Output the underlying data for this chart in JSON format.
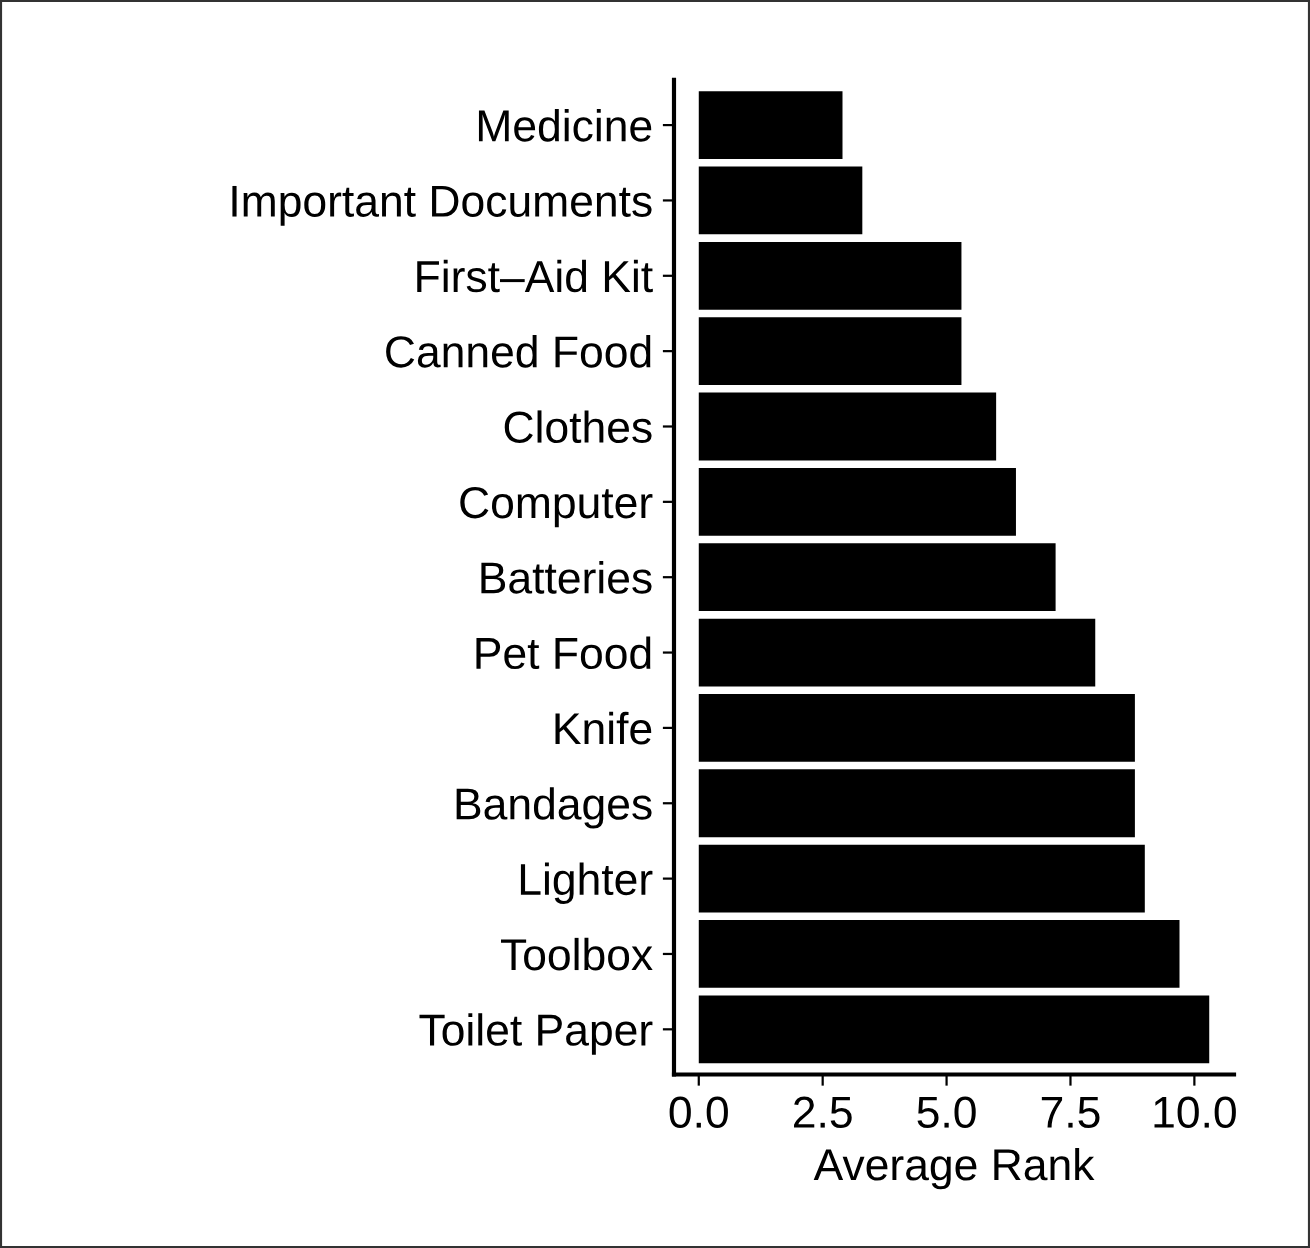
{
  "chart_data": {
    "type": "bar",
    "orientation": "horizontal",
    "xlabel": "Average Rank",
    "categories": [
      "Medicine",
      "Important Documents",
      "First–Aid Kit",
      "Canned Food",
      "Clothes",
      "Computer",
      "Batteries",
      "Pet Food",
      "Knife",
      "Bandages",
      "Lighter",
      "Toolbox",
      "Toilet Paper"
    ],
    "values": [
      2.9,
      3.3,
      5.3,
      5.3,
      6.0,
      6.4,
      7.2,
      8.0,
      8.8,
      8.8,
      9.0,
      9.7,
      10.3
    ],
    "color": "#000000",
    "xlim": [
      -0.5,
      10.8
    ],
    "xticks": [
      {
        "value": 0,
        "label": "0.0"
      },
      {
        "value": 2.5,
        "label": "2.5"
      },
      {
        "value": 5,
        "label": "5.0"
      },
      {
        "value": 7.5,
        "label": "7.5"
      },
      {
        "value": 10,
        "label": "10.0"
      }
    ],
    "grid": false,
    "legend": false
  }
}
